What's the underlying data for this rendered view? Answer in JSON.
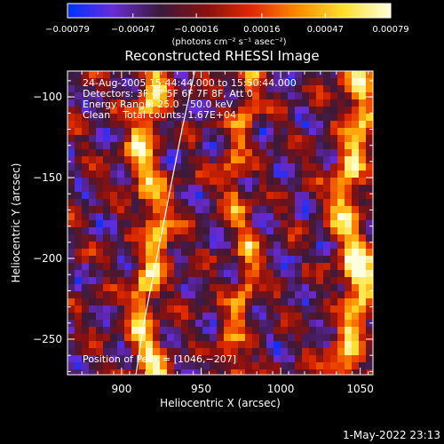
{
  "chart_data": {
    "type": "heatmap",
    "title": "Reconstructed RHESSI Image",
    "xlabel": "Heliocentric X (arcsec)",
    "ylabel": "Heliocentric Y (arcsec)",
    "xlim": [
      866,
      1058
    ],
    "ylim": [
      -272,
      -84
    ],
    "xticks": [
      900,
      950,
      1000,
      1050
    ],
    "xtick_labels": [
      "900",
      "950",
      "1000",
      "1050"
    ],
    "yticks": [
      -100,
      -150,
      -200,
      -250
    ],
    "ytick_labels": [
      "−100",
      "−150",
      "−200",
      "−250"
    ],
    "colorbar": {
      "range": [
        -0.00079,
        0.00079
      ],
      "ticks": [
        -0.00079,
        -0.00047,
        -0.00016,
        0.00016,
        0.00047,
        0.00079
      ],
      "tick_labels": [
        "−0.00079",
        "−0.00047",
        "−0.00016",
        "0.00016",
        "0.00047",
        "0.00079"
      ],
      "colors": [
        "#0033ff",
        "#6a2bd6",
        "#3a1a3a",
        "#8a1010",
        "#e02a00",
        "#ff8c00",
        "#ffe030",
        "#ffffe0"
      ],
      "unit_label": "(photons cm⁻² s⁻¹ asec⁻²)"
    },
    "annotations": {
      "time": "24‑Aug‑2005 15:44:44.000 to 15:50:44.000",
      "detectors": "Detectors: 3F 4F 5F 6F 7F 8F, Att 0",
      "energy": "Energy Range: 25.0 – 50.0 keV",
      "clean": "Clean    Total counts: 1.67E+04",
      "peak": "Position of Peak = [1046,−207]"
    },
    "limb_curve": {
      "description_points": [
        [
          946,
          -84
        ],
        [
          938,
          -120
        ],
        [
          930,
          -160
        ],
        [
          922,
          -200
        ],
        [
          914,
          -240
        ],
        [
          909,
          -272
        ]
      ]
    },
    "bright_columns_x": [
      918,
      975,
      1045
    ],
    "peak": [
      1046,
      -207
    ]
  },
  "footer": {
    "timestamp": "1‑May‑2022 23:13"
  }
}
